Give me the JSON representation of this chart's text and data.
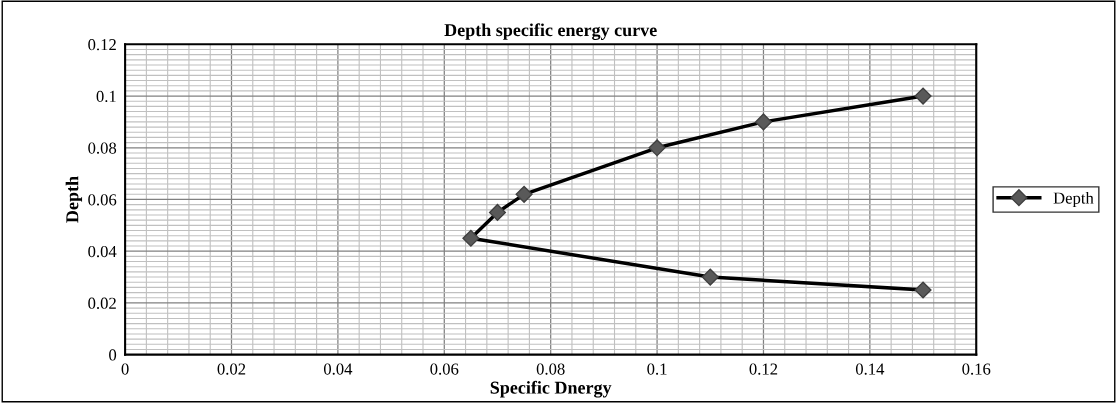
{
  "chart_data": {
    "type": "line",
    "title": "Depth specific energy curve",
    "xlabel": "Specific Dnergy",
    "ylabel": "Depth",
    "series": [
      {
        "name": "Depth",
        "color": "#000000",
        "x": [
          0.15,
          0.11,
          0.065,
          0.07,
          0.075,
          0.1,
          0.12,
          0.15
        ],
        "values": [
          0.025,
          0.03,
          0.045,
          0.055,
          0.062,
          0.08,
          0.09,
          0.1
        ]
      }
    ],
    "xlim": [
      0,
      0.16
    ],
    "xticks": [
      0,
      0.02,
      0.04,
      0.06,
      0.08,
      0.1,
      0.12,
      0.14,
      0.16
    ],
    "ylim": [
      0,
      0.12
    ],
    "yticks": [
      0,
      0.02,
      0.04,
      0.06,
      0.08,
      0.1,
      0.12
    ],
    "grid": true,
    "legend": "right",
    "marker": "diamond",
    "line_style": "solid"
  }
}
